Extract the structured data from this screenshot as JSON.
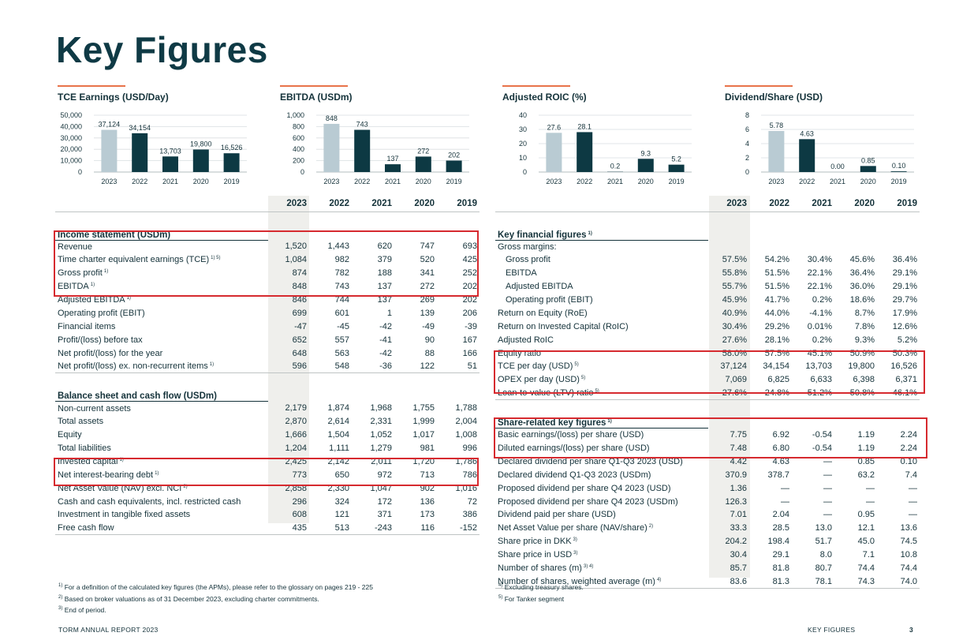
{
  "page_title": "Key Figures",
  "chart_data": [
    {
      "type": "bar",
      "title": "TCE Earnings (USD/Day)",
      "categories": [
        "2023",
        "2022",
        "2021",
        "2020",
        "2019"
      ],
      "values": [
        37124,
        34154,
        13703,
        19800,
        16526
      ],
      "value_labels": [
        "37,124",
        "34,154",
        "13,703",
        "19,800",
        "16,526"
      ],
      "ylim": [
        0,
        50000
      ],
      "yticks": [
        "0",
        "10,000",
        "20,000",
        "30,000",
        "40,000",
        "50,000"
      ],
      "colors": [
        "#b9cbd3",
        "#0d3943",
        "#0d3943",
        "#0d3943",
        "#0d3943"
      ]
    },
    {
      "type": "bar",
      "title": "EBITDA (USDm)",
      "categories": [
        "2023",
        "2022",
        "2021",
        "2020",
        "2019"
      ],
      "values": [
        848,
        743,
        137,
        272,
        202
      ],
      "value_labels": [
        "848",
        "743",
        "137",
        "272",
        "202"
      ],
      "ylim": [
        0,
        1000
      ],
      "yticks": [
        "0",
        "200",
        "400",
        "600",
        "800",
        "1,000"
      ],
      "colors": [
        "#b9cbd3",
        "#0d3943",
        "#0d3943",
        "#0d3943",
        "#0d3943"
      ]
    },
    {
      "type": "bar",
      "title": "Adjusted ROIC (%)",
      "categories": [
        "2023",
        "2022",
        "2021",
        "2020",
        "2019"
      ],
      "values": [
        27.6,
        28.1,
        0.2,
        9.3,
        5.2
      ],
      "value_labels": [
        "27.6",
        "28.1",
        "0.2",
        "9.3",
        "5.2"
      ],
      "ylim": [
        0,
        40
      ],
      "yticks": [
        "0",
        "10",
        "20",
        "30",
        "40"
      ],
      "colors": [
        "#b9cbd3",
        "#0d3943",
        "#0d3943",
        "#0d3943",
        "#0d3943"
      ]
    },
    {
      "type": "bar",
      "title": "Dividend/Share (USD)",
      "categories": [
        "2023",
        "2022",
        "2021",
        "2020",
        "2019"
      ],
      "values": [
        5.78,
        4.63,
        0.0,
        0.85,
        0.1
      ],
      "value_labels": [
        "5.78",
        "4.63",
        "0.00",
        "0.85",
        "0.10"
      ],
      "ylim": [
        0,
        8
      ],
      "yticks": [
        "0",
        "2",
        "4",
        "6",
        "8"
      ],
      "colors": [
        "#b9cbd3",
        "#0d3943",
        "#0d3943",
        "#0d3943",
        "#0d3943"
      ]
    }
  ],
  "years": [
    "2023",
    "2022",
    "2021",
    "2020",
    "2019"
  ],
  "left_table": {
    "sections": [
      {
        "title": "Income statement (USDm)",
        "rows": [
          {
            "label": "Revenue",
            "sup": "",
            "values": [
              "1,520",
              "1,443",
              "620",
              "747",
              "693"
            ]
          },
          {
            "label": "Time charter equivalent earnings (TCE)",
            "sup": "1) 5)",
            "values": [
              "1,084",
              "982",
              "379",
              "520",
              "425"
            ]
          },
          {
            "label": "Gross profit",
            "sup": "1)",
            "values": [
              "874",
              "782",
              "188",
              "341",
              "252"
            ]
          },
          {
            "label": "EBITDA",
            "sup": "1)",
            "values": [
              "848",
              "743",
              "137",
              "272",
              "202"
            ]
          },
          {
            "label": "Adjusted EBITDA",
            "sup": "1)",
            "values": [
              "846",
              "744",
              "137",
              "269",
              "202"
            ]
          },
          {
            "label": "Operating profit (EBIT)",
            "sup": "",
            "values": [
              "699",
              "601",
              "1",
              "139",
              "206"
            ]
          },
          {
            "label": "Financial items",
            "sup": "",
            "values": [
              "-47",
              "-45",
              "-42",
              "-49",
              "-39"
            ]
          },
          {
            "label": "Profit/(loss) before tax",
            "sup": "",
            "values": [
              "652",
              "557",
              "-41",
              "90",
              "167"
            ]
          },
          {
            "label": "Net profit/(loss) for the year",
            "sup": "",
            "values": [
              "648",
              "563",
              "-42",
              "88",
              "166"
            ]
          },
          {
            "label": "Net profit/(loss) ex. non-recurrent items",
            "sup": "1)",
            "values": [
              "596",
              "548",
              "-36",
              "122",
              "51"
            ]
          }
        ]
      },
      {
        "title": "Balance sheet and cash flow (USDm)",
        "rows": [
          {
            "label": "Non-current assets",
            "sup": "",
            "values": [
              "2,179",
              "1,874",
              "1,968",
              "1,755",
              "1,788"
            ]
          },
          {
            "label": "Total assets",
            "sup": "",
            "values": [
              "2,870",
              "2,614",
              "2,331",
              "1,999",
              "2,004"
            ]
          },
          {
            "label": "Equity",
            "sup": "",
            "values": [
              "1,666",
              "1,504",
              "1,052",
              "1,017",
              "1,008"
            ]
          },
          {
            "label": "Total liabilities",
            "sup": "",
            "values": [
              "1,204",
              "1,111",
              "1,279",
              "981",
              "996"
            ]
          },
          {
            "label": "Invested capital",
            "sup": "1)",
            "values": [
              "2,425",
              "2,142",
              "2,011",
              "1,720",
              "1,786"
            ]
          },
          {
            "label": "Net interest-bearing debt",
            "sup": "1)",
            "values": [
              "773",
              "650",
              "972",
              "713",
              "786"
            ]
          },
          {
            "label": "Net Asset Value (NAV) excl. NCI",
            "sup": "2)",
            "values": [
              "2,858",
              "2,330",
              "1,047",
              "902",
              "1,016"
            ]
          },
          {
            "label": "Cash and cash equivalents, incl. restricted cash",
            "sup": "",
            "values": [
              "296",
              "324",
              "172",
              "136",
              "72"
            ]
          },
          {
            "label": "Investment in tangible fixed assets",
            "sup": "",
            "values": [
              "608",
              "121",
              "371",
              "173",
              "386"
            ]
          },
          {
            "label": "Free cash flow",
            "sup": "",
            "values": [
              "435",
              "513",
              "-243",
              "116",
              "-152"
            ]
          }
        ]
      }
    ]
  },
  "right_table": {
    "sections": [
      {
        "title": "Key financial figures",
        "title_sup": "1)",
        "rows": [
          {
            "label": "Gross margins:",
            "sup": "",
            "indent": false,
            "values": [
              "",
              "",
              "",
              "",
              ""
            ]
          },
          {
            "label": "Gross profit",
            "sup": "",
            "indent": true,
            "values": [
              "57.5%",
              "54.2%",
              "30.4%",
              "45.6%",
              "36.4%"
            ]
          },
          {
            "label": "EBITDA",
            "sup": "",
            "indent": true,
            "values": [
              "55.8%",
              "51.5%",
              "22.1%",
              "36.4%",
              "29.1%"
            ]
          },
          {
            "label": "Adjusted EBITDA",
            "sup": "",
            "indent": true,
            "values": [
              "55.7%",
              "51.5%",
              "22.1%",
              "36.0%",
              "29.1%"
            ]
          },
          {
            "label": "Operating profit (EBIT)",
            "sup": "",
            "indent": true,
            "values": [
              "45.9%",
              "41.7%",
              "0.2%",
              "18.6%",
              "29.7%"
            ]
          },
          {
            "label": "Return on Equity (RoE)",
            "sup": "",
            "indent": false,
            "values": [
              "40.9%",
              "44.0%",
              "-4.1%",
              "8.7%",
              "17.9%"
            ]
          },
          {
            "label": "Return on Invested Capital (RoIC)",
            "sup": "",
            "indent": false,
            "values": [
              "30.4%",
              "29.2%",
              "0.01%",
              "7.8%",
              "12.6%"
            ]
          },
          {
            "label": "Adjusted RoIC",
            "sup": "",
            "indent": false,
            "values": [
              "27.6%",
              "28.1%",
              "0.2%",
              "9.3%",
              "5.2%"
            ]
          },
          {
            "label": "Equity ratio",
            "sup": "",
            "indent": false,
            "values": [
              "58.0%",
              "57.5%",
              "45.1%",
              "50.9%",
              "50.3%"
            ]
          },
          {
            "label": "TCE per day (USD)",
            "sup": "5)",
            "indent": false,
            "values": [
              "37,124",
              "34,154",
              "13,703",
              "19,800",
              "16,526"
            ]
          },
          {
            "label": "OPEX per day (USD)",
            "sup": "5)",
            "indent": false,
            "values": [
              "7,069",
              "6,825",
              "6,633",
              "6,398",
              "6,371"
            ]
          },
          {
            "label": "Loan-to-value (LTV) ratio",
            "sup": "5)",
            "indent": false,
            "values": [
              "27.6%",
              "24.8%",
              "51.2%",
              "50.8%",
              "46.1%"
            ]
          }
        ]
      },
      {
        "title": "Share-related key figures",
        "title_sup": "1)",
        "rows": [
          {
            "label": "Basic earnings/(loss) per share (USD)",
            "sup": "",
            "indent": false,
            "values": [
              "7.75",
              "6.92",
              "-0.54",
              "1.19",
              "2.24"
            ]
          },
          {
            "label": "Diluted earnings/(loss) per share (USD)",
            "sup": "",
            "indent": false,
            "values": [
              "7.48",
              "6.80",
              "-0.54",
              "1.19",
              "2.24"
            ]
          },
          {
            "label": "Declared dividend per share Q1-Q3 2023 (USD)",
            "sup": "",
            "indent": false,
            "values": [
              "4.42",
              "4.63",
              "—",
              "0.85",
              "0.10"
            ]
          },
          {
            "label": "Declared dividend Q1-Q3 2023 (USDm)",
            "sup": "",
            "indent": false,
            "values": [
              "370.9",
              "378.7",
              "—",
              "63.2",
              "7.4"
            ]
          },
          {
            "label": "Proposed dividend per share Q4 2023 (USD)",
            "sup": "",
            "indent": false,
            "values": [
              "1.36",
              "—",
              "—",
              "—",
              "—"
            ]
          },
          {
            "label": "Proposed dividend per share Q4 2023 (USDm)",
            "sup": "",
            "indent": false,
            "values": [
              "126.3",
              "—",
              "—",
              "—",
              "—"
            ]
          },
          {
            "label": "Dividend paid per share (USD)",
            "sup": "",
            "indent": false,
            "values": [
              "7.01",
              "2.04",
              "—",
              "0.95",
              "—"
            ]
          },
          {
            "label": "Net Asset Value per share (NAV/share)",
            "sup": "2)",
            "indent": false,
            "values": [
              "33.3",
              "28.5",
              "13.0",
              "12.1",
              "13.6"
            ]
          },
          {
            "label": "Share price in DKK",
            "sup": "3)",
            "indent": false,
            "values": [
              "204.2",
              "198.4",
              "51.7",
              "45.0",
              "74.5"
            ]
          },
          {
            "label": "Share price in USD",
            "sup": "3)",
            "indent": false,
            "values": [
              "30.4",
              "29.1",
              "8.0",
              "7.1",
              "10.8"
            ]
          },
          {
            "label": "Number of shares (m)",
            "sup": "3) 4)",
            "indent": false,
            "values": [
              "85.7",
              "81.8",
              "80.7",
              "74.4",
              "74.4"
            ]
          },
          {
            "label": "Number of shares, weighted average (m)",
            "sup": "4)",
            "indent": false,
            "values": [
              "83.6",
              "81.3",
              "78.1",
              "74.3",
              "74.0"
            ]
          }
        ]
      }
    ]
  },
  "notes_left": [
    {
      "mark": "1)",
      "text": "For a definition of the calculated key figures (the APMs), please refer to the glossary on pages 219 - 225"
    },
    {
      "mark": "2)",
      "text": "Based on broker valuations as of 31 December 2023, excluding charter commitments."
    },
    {
      "mark": "3)",
      "text": "End of period."
    }
  ],
  "notes_right": [
    {
      "mark": "4)",
      "text": "Excluding treasury shares."
    },
    {
      "mark": "5)",
      "text": "For Tanker segment"
    }
  ],
  "footer": {
    "left": "TORM ANNUAL REPORT 2023",
    "section": "KEY FIGURES",
    "page": "3"
  }
}
